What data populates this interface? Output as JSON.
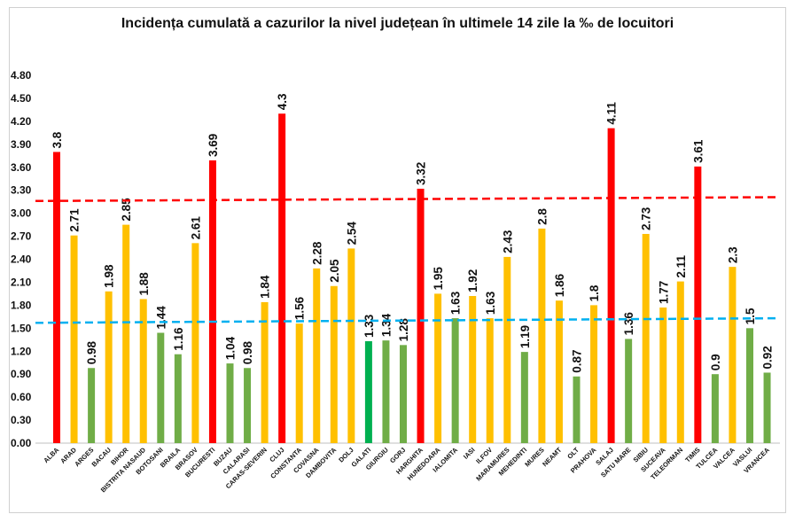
{
  "chart_data": {
    "type": "bar",
    "title": "Incidența cumulată a cazurilor la nivel județean în ultimele 14 zile la ‰ de locuitori",
    "xlabel": "",
    "ylabel": "",
    "ylim": [
      0,
      4.8
    ],
    "yticks": [
      "0.00",
      "0.30",
      "0.60",
      "0.90",
      "1.20",
      "1.50",
      "1.80",
      "2.10",
      "2.40",
      "2.70",
      "3.00",
      "3.30",
      "3.60",
      "3.90",
      "4.20",
      "4.50",
      "4.80"
    ],
    "grid": false,
    "legend": "none",
    "categories": [
      "ALBA",
      "ARAD",
      "ARGES",
      "BACAU",
      "BIHOR",
      "BISTRITA NASAUD",
      "BOTOSANI",
      "BRAILA",
      "BRASOV",
      "BUCURESTI",
      "BUZAU",
      "CALARASI",
      "CARAS-SEVERIN",
      "CLUJ",
      "CONSTANTA",
      "COVASNA",
      "DAMBOVITA",
      "DOLJ",
      "GALATI",
      "GIURGIU",
      "GORJ",
      "HARGHITA",
      "HUNEDOARA",
      "IALOMITA",
      "IASI",
      "ILFOV",
      "MARAMURES",
      "MEHEDINTI",
      "MURES",
      "NEAMT",
      "OLT",
      "PRAHOVA",
      "SALAJ",
      "SATU MARE",
      "SIBIU",
      "SUCEAVA",
      "TELEORMAN",
      "TIMIS",
      "TULCEA",
      "VALCEA",
      "VASLUI",
      "VRANCEA"
    ],
    "values": [
      3.8,
      2.71,
      0.98,
      1.98,
      2.85,
      1.88,
      1.44,
      1.16,
      2.61,
      3.69,
      1.04,
      0.98,
      1.84,
      4.3,
      1.56,
      2.28,
      2.05,
      2.54,
      1.33,
      1.34,
      1.28,
      3.32,
      1.95,
      1.63,
      1.92,
      1.63,
      2.43,
      1.19,
      2.8,
      1.86,
      0.87,
      1.8,
      4.11,
      1.36,
      2.73,
      1.77,
      2.11,
      3.61,
      0.9,
      2.3,
      1.5,
      0.92
    ],
    "value_labels": [
      "3.8",
      "2.71",
      "0.98",
      "1.98",
      "2.85",
      "1.88",
      "1.44",
      "1.16",
      "2.61",
      "3.69",
      "1.04",
      "0.98",
      "1.84",
      "4.3",
      "1.56",
      "2.28",
      "2.05",
      "2.54",
      "1.33",
      "1.34",
      "1.28",
      "3.32",
      "1.95",
      "1.63",
      "1.92",
      "1.63",
      "2.43",
      "1.19",
      "2.8",
      "1.86",
      "0.87",
      "1.8",
      "4.11",
      "1.36",
      "2.73",
      "1.77",
      "2.11",
      "3.61",
      "0.9",
      "2.3",
      "1.5",
      "0.92"
    ],
    "bar_colors": [
      "#ff0000",
      "#ffc000",
      "#70ad47",
      "#ffc000",
      "#ffc000",
      "#ffc000",
      "#70ad47",
      "#70ad47",
      "#ffc000",
      "#ff0000",
      "#70ad47",
      "#70ad47",
      "#ffc000",
      "#ff0000",
      "#ffc000",
      "#ffc000",
      "#ffc000",
      "#ffc000",
      "#00b050",
      "#70ad47",
      "#70ad47",
      "#ff0000",
      "#ffc000",
      "#70ad47",
      "#ffc000",
      "#ffc000",
      "#ffc000",
      "#70ad47",
      "#ffc000",
      "#ffc000",
      "#70ad47",
      "#ffc000",
      "#ff0000",
      "#70ad47",
      "#ffc000",
      "#ffc000",
      "#ffc000",
      "#ff0000",
      "#70ad47",
      "#ffc000",
      "#70ad47",
      "#70ad47"
    ],
    "reference_lines": [
      {
        "color": "#ff0000",
        "y_start": 3.16,
        "y_end": 3.21
      },
      {
        "color": "#00b0f0",
        "y_start": 1.57,
        "y_end": 1.63
      }
    ]
  }
}
